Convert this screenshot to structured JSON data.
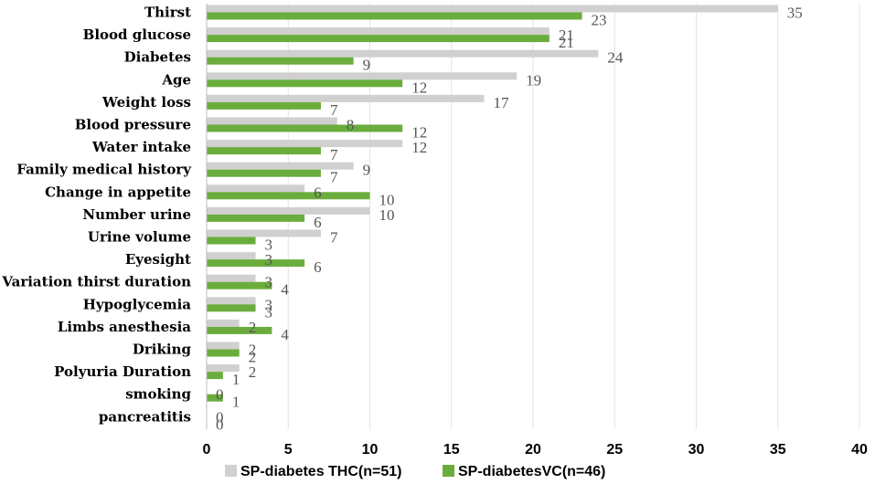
{
  "chart_data": {
    "type": "bar",
    "orientation": "horizontal",
    "categories": [
      "Thirst",
      "Blood glucose",
      "Diabetes",
      "Age",
      "Weight loss",
      "Blood  pressure",
      "Water intake",
      "Family medical history",
      "Change in appetite",
      "Number urine",
      "Urine volume",
      "Eyesight",
      "Variation thirst duration",
      "Hypoglycemia",
      "Limbs anesthesia",
      "Driking",
      "Polyuria Duration",
      "smoking",
      "pancreatitis"
    ],
    "series": [
      {
        "name": "SP-diabetes THC(n=51)",
        "color": "#d0d0d0",
        "values": [
          35,
          21,
          24,
          19,
          17,
          8,
          12,
          9,
          6,
          10,
          7,
          3,
          3,
          3,
          2,
          2,
          2,
          0,
          0
        ]
      },
      {
        "name": "SP-diabetesVC(n=46)",
        "color": "#6aad3d",
        "values": [
          23,
          21,
          9,
          12,
          7,
          12,
          7,
          7,
          10,
          6,
          3,
          6,
          4,
          3,
          4,
          2,
          1,
          1,
          0
        ]
      }
    ],
    "xlim": [
      0,
      40
    ],
    "xticks": [
      "0",
      "5",
      "10",
      "15",
      "20",
      "25",
      "30",
      "35",
      "40"
    ],
    "grid": "vertical",
    "legend": "bottom",
    "data_labels": true,
    "title": "",
    "xlabel": "",
    "ylabel": ""
  }
}
